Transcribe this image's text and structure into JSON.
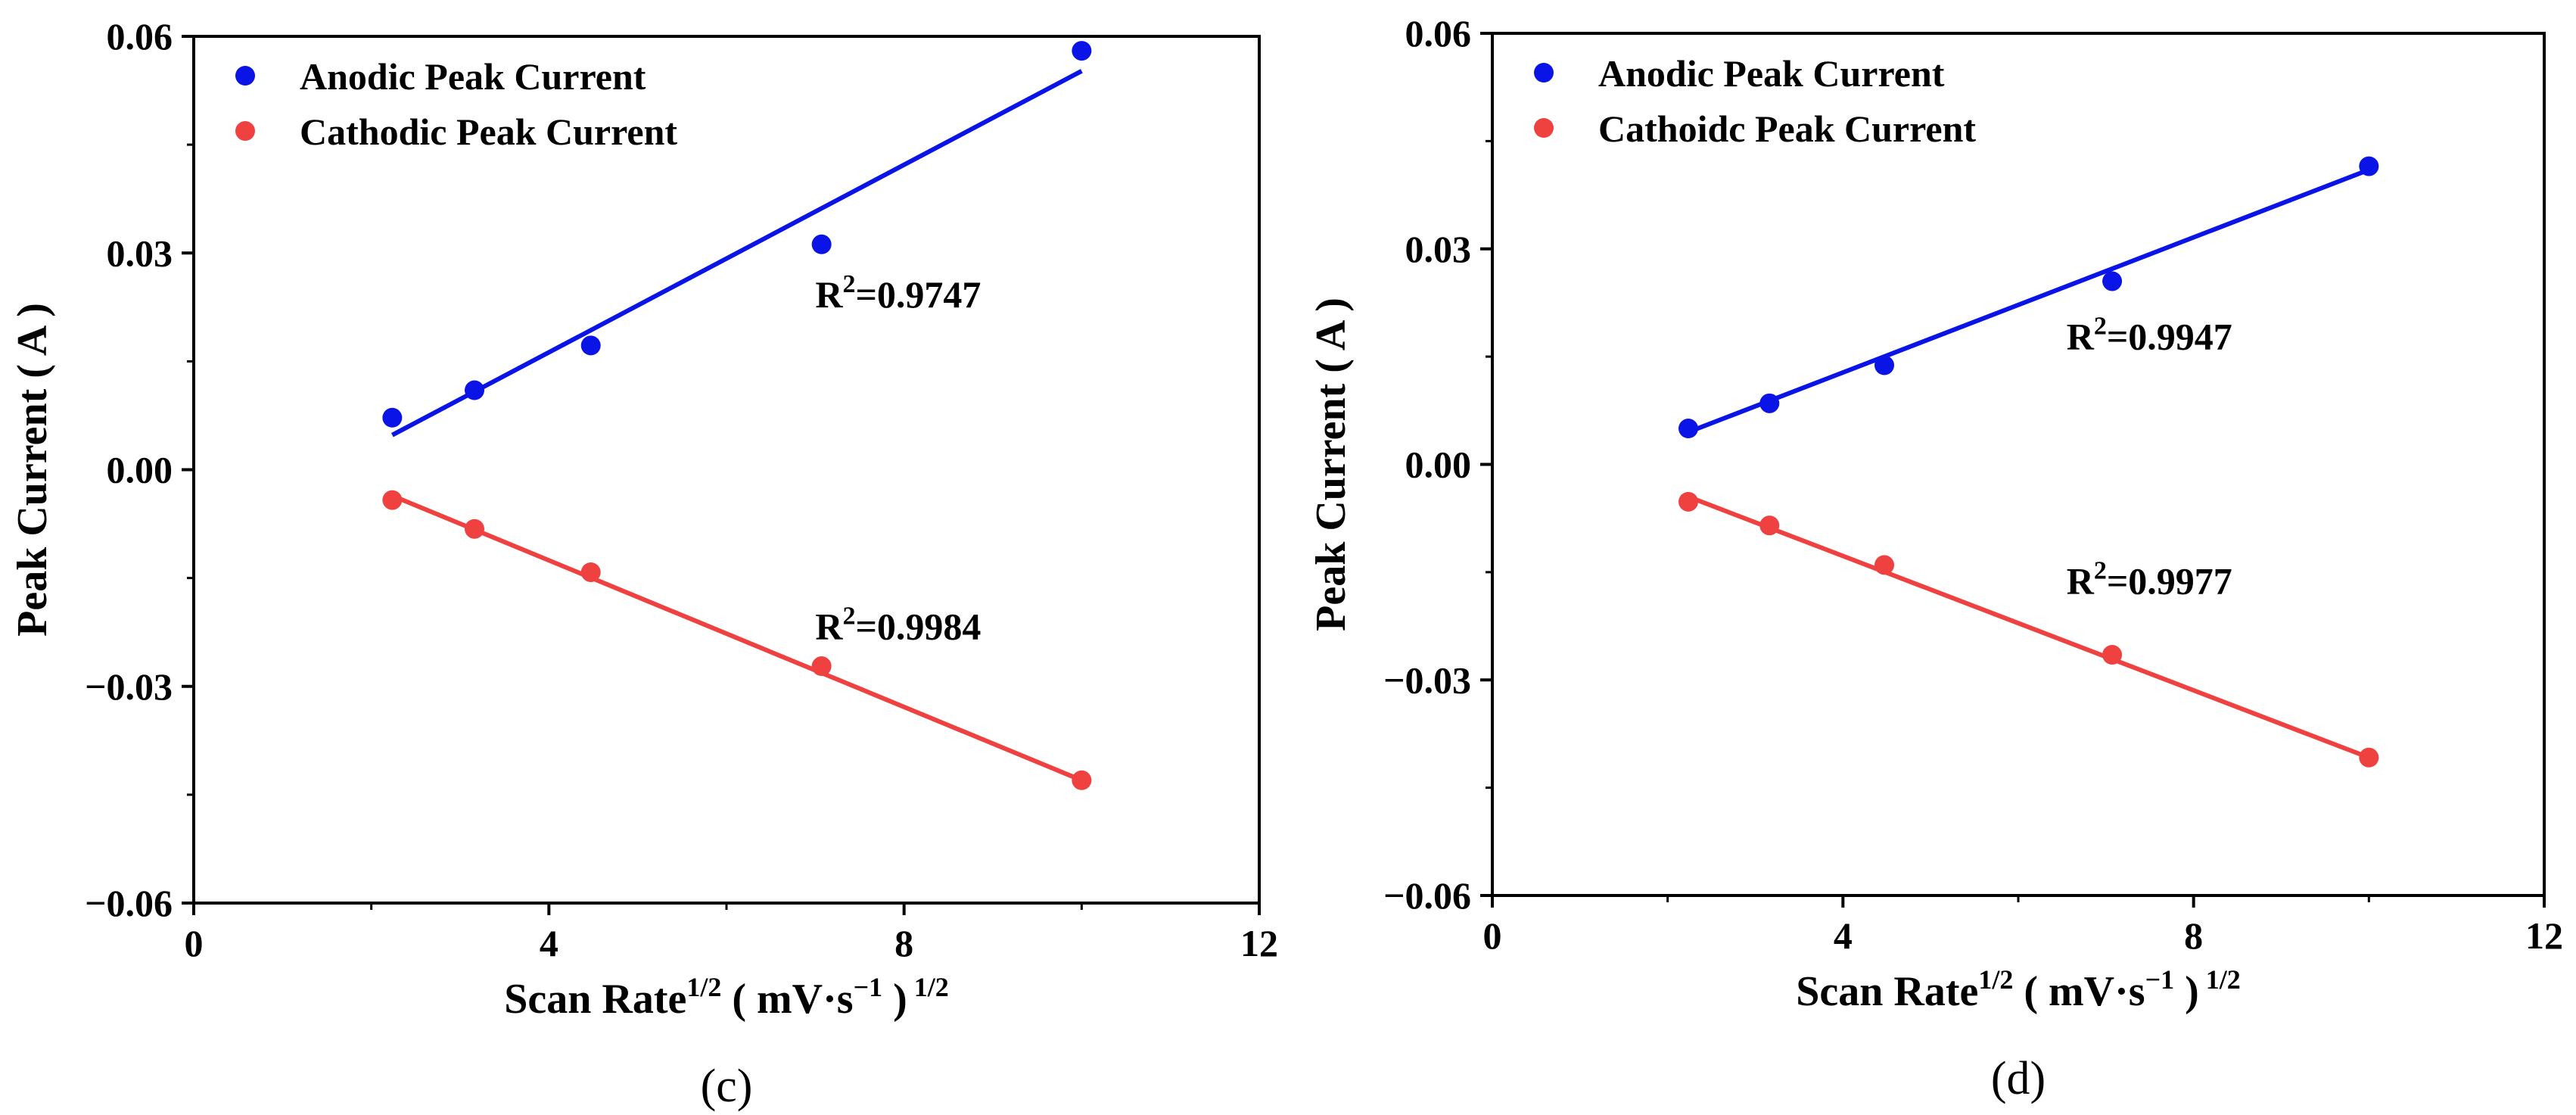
{
  "chart_data": [
    {
      "type": "scatter",
      "panel": "(c)",
      "xlabel": "Scan Rate",
      "xlabel_sup1": "1/2",
      "xlabel_unit": "( mV·s",
      "xlabel_unit_sup": "−1",
      "xlabel_close": ")",
      "xlabel_sup2": "1/2",
      "ylabel": "Peak Current ( A )",
      "xlim": [
        0,
        12
      ],
      "ylim": [
        -0.06,
        0.06
      ],
      "xticks": [
        0,
        4,
        8,
        12
      ],
      "xtick_labels": [
        "0",
        "4",
        "8",
        "12"
      ],
      "yticks": [
        -0.06,
        -0.03,
        0.0,
        0.03,
        0.06
      ],
      "ytick_labels": [
        "−0.06",
        "−0.03",
        "0.00",
        "0.03",
        "0.06"
      ],
      "legend_position": "top-left",
      "series": [
        {
          "name": "Anodic Peak Current",
          "color": "#0a14e6",
          "x": [
            2.236,
            3.162,
            4.472,
            7.071,
            10.0
          ],
          "values": [
            0.0072,
            0.011,
            0.0172,
            0.0312,
            0.058
          ],
          "fit": {
            "x": [
              2.236,
              10.0
            ],
            "y": [
              0.0048,
              0.0552
            ]
          },
          "r2_prefix": "R",
          "r2_sup": "2",
          "r2_value": "=0.9747",
          "r2_at": {
            "x": 7.0,
            "y": 0.0225
          }
        },
        {
          "name": "Cathodic Peak Current",
          "color": "#f04141",
          "x": [
            2.236,
            3.162,
            4.472,
            7.071,
            10.0
          ],
          "values": [
            -0.0042,
            -0.0082,
            -0.0142,
            -0.0272,
            -0.043
          ],
          "fit": {
            "x": [
              2.236,
              10.0
            ],
            "y": [
              -0.0036,
              -0.043
            ]
          },
          "r2_prefix": "R",
          "r2_sup": "2",
          "r2_value": "=0.9984",
          "r2_at": {
            "x": 7.0,
            "y": -0.0235
          }
        }
      ]
    },
    {
      "type": "scatter",
      "panel": "(d)",
      "xlabel": "Scan Rate",
      "xlabel_sup1": "1/2",
      "xlabel_unit": "( mV·s",
      "xlabel_unit_sup": "−1",
      "xlabel_close": ")",
      "xlabel_sup2": "1/2",
      "ylabel": "Peak Current ( A )",
      "xlim": [
        0,
        12
      ],
      "ylim": [
        -0.06,
        0.06
      ],
      "xticks": [
        0,
        4,
        8,
        12
      ],
      "xtick_labels": [
        "0",
        "4",
        "8",
        "12"
      ],
      "yticks": [
        -0.06,
        -0.03,
        0.0,
        0.03,
        0.06
      ],
      "ytick_labels": [
        "−0.06",
        "−0.03",
        "0.00",
        "0.03",
        "0.06"
      ],
      "legend_position": "top-left",
      "series": [
        {
          "name": "Anodic Peak Current",
          "color": "#0a14e6",
          "x": [
            2.236,
            3.162,
            4.472,
            7.071,
            10.0
          ],
          "values": [
            0.005,
            0.0085,
            0.0138,
            0.0255,
            0.0415
          ],
          "fit": {
            "x": [
              2.236,
              10.0
            ],
            "y": [
              0.0045,
              0.041
            ]
          },
          "r2_prefix": "R",
          "r2_sup": "2",
          "r2_value": "=0.9947",
          "r2_at": {
            "x": 6.55,
            "y": 0.016
          }
        },
        {
          "name": "Cathoidc Peak Current",
          "color": "#f04141",
          "x": [
            2.236,
            3.162,
            4.472,
            7.071,
            10.0
          ],
          "values": [
            -0.0052,
            -0.0085,
            -0.014,
            -0.0265,
            -0.0408
          ],
          "fit": {
            "x": [
              2.236,
              10.0
            ],
            "y": [
              -0.0045,
              -0.0408
            ]
          },
          "r2_prefix": "R",
          "r2_sup": "2",
          "r2_value": "=0.9977",
          "r2_at": {
            "x": 6.55,
            "y": -0.018
          }
        }
      ]
    }
  ]
}
